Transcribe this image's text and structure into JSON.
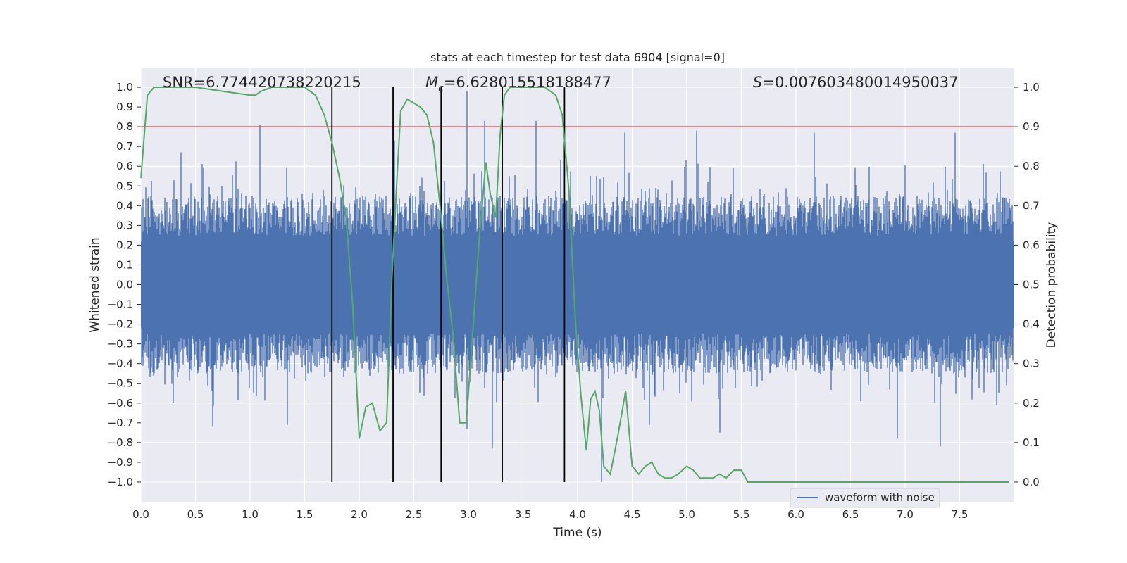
{
  "chart_data": {
    "type": "line",
    "title": "stats at each timestep for test data 6904 [signal=0]",
    "xlabel": "Time (s)",
    "ylabel": "Whitened strain",
    "y2label": "Detection probability",
    "xlim": [
      0.0,
      8.0
    ],
    "ylim": [
      -1.1,
      1.1
    ],
    "y2lim": [
      -0.05,
      1.05
    ],
    "xticks": [
      "0.0",
      "0.5",
      "1.0",
      "1.5",
      "2.0",
      "2.5",
      "3.0",
      "3.5",
      "4.0",
      "4.5",
      "5.0",
      "5.5",
      "6.0",
      "6.5",
      "7.0",
      "7.5"
    ],
    "yticks": [
      "1.0",
      "0.9",
      "0.8",
      "0.7",
      "0.6",
      "0.5",
      "0.4",
      "0.3",
      "0.2",
      "0.1",
      "0.0",
      "−0.1",
      "−0.2",
      "−0.3",
      "−0.4",
      "−0.5",
      "−0.6",
      "−0.7",
      "−0.8",
      "−0.9",
      "−1.0"
    ],
    "y2ticks": [
      "1.0",
      "0.9",
      "0.8",
      "0.7",
      "0.6",
      "0.5",
      "0.4",
      "0.3",
      "0.2",
      "0.1",
      "0.0"
    ],
    "annotations": {
      "snr": "SNR=6.774420738220215",
      "mc_symbol": "M",
      "mc_sub": "c",
      "mc_value": "=6.628015518188477",
      "s_symbol": "S",
      "s_value": "=0.007603480014950037"
    },
    "threshold": {
      "value": 0.9,
      "axis": "y2",
      "color": "#c44e52"
    },
    "event_markers_time": [
      1.75,
      2.31,
      2.75,
      3.31,
      3.88
    ],
    "legend": {
      "label": "waveform with noise",
      "location": "lower-right"
    },
    "series": [
      {
        "name": "waveform with noise",
        "axis": "y",
        "color": "#4c72b0",
        "noise_amplitude_typical": 0.45,
        "spikes": [
          {
            "t": 1.09,
            "v": 0.81
          },
          {
            "t": 2.99,
            "v": 0.98
          },
          {
            "t": 3.15,
            "v": 0.83
          },
          {
            "t": 3.62,
            "v": 0.83
          },
          {
            "t": 4.43,
            "v": 0.77
          },
          {
            "t": 5.09,
            "v": 0.78
          },
          {
            "t": 6.17,
            "v": 0.77
          },
          {
            "t": 7.46,
            "v": 0.77
          },
          {
            "t": 0.37,
            "v": 0.67
          },
          {
            "t": 1.75,
            "v": 0.67
          },
          {
            "t": 2.32,
            "v": 0.73
          },
          {
            "t": 0.66,
            "v": -0.72
          },
          {
            "t": 2.99,
            "v": -0.73
          },
          {
            "t": 3.22,
            "v": -0.83
          },
          {
            "t": 4.22,
            "v": -1.0
          },
          {
            "t": 5.3,
            "v": -0.75
          },
          {
            "t": 6.93,
            "v": -0.78
          },
          {
            "t": 7.32,
            "v": -0.82
          },
          {
            "t": 1.34,
            "v": -0.71
          },
          {
            "t": 4.66,
            "v": -0.71
          }
        ]
      },
      {
        "name": "detection probability",
        "axis": "y2",
        "color": "#55a868",
        "x": [
          0.0,
          0.06,
          0.12,
          0.25,
          0.5,
          0.75,
          1.0,
          1.05,
          1.1,
          1.2,
          1.3,
          1.5,
          1.6,
          1.68,
          1.75,
          1.82,
          1.88,
          1.94,
          2.0,
          2.06,
          2.12,
          2.19,
          2.25,
          2.3,
          2.34,
          2.38,
          2.44,
          2.5,
          2.56,
          2.62,
          2.68,
          2.74,
          2.8,
          2.86,
          2.92,
          2.98,
          3.04,
          3.1,
          3.16,
          3.2,
          3.25,
          3.29,
          3.33,
          3.38,
          3.45,
          3.55,
          3.7,
          3.8,
          3.86,
          3.92,
          3.98,
          4.03,
          4.08,
          4.12,
          4.16,
          4.2,
          4.24,
          4.3,
          4.37,
          4.44,
          4.5,
          4.56,
          4.62,
          4.68,
          4.74,
          4.8,
          4.86,
          4.92,
          5.0,
          5.06,
          5.12,
          5.18,
          5.24,
          5.3,
          5.36,
          5.43,
          5.5,
          5.56,
          5.62,
          5.7,
          5.8,
          6.0,
          6.2,
          6.4,
          6.6,
          6.8,
          7.0,
          7.2,
          7.4,
          7.6,
          7.8,
          7.95
        ],
        "y": [
          0.77,
          0.98,
          1.0,
          1.0,
          1.0,
          0.99,
          0.98,
          0.98,
          0.99,
          1.0,
          1.0,
          1.0,
          0.98,
          0.93,
          0.86,
          0.77,
          0.67,
          0.45,
          0.11,
          0.19,
          0.2,
          0.13,
          0.15,
          0.52,
          0.74,
          0.94,
          0.97,
          0.96,
          0.95,
          0.93,
          0.86,
          0.7,
          0.52,
          0.37,
          0.15,
          0.15,
          0.38,
          0.62,
          0.81,
          0.73,
          0.67,
          0.88,
          0.98,
          1.0,
          1.0,
          1.0,
          1.0,
          0.98,
          0.93,
          0.74,
          0.41,
          0.22,
          0.08,
          0.21,
          0.23,
          0.18,
          0.04,
          0.02,
          0.12,
          0.23,
          0.04,
          0.02,
          0.04,
          0.05,
          0.02,
          0.01,
          0.01,
          0.02,
          0.04,
          0.03,
          0.01,
          0.01,
          0.01,
          0.02,
          0.01,
          0.03,
          0.03,
          0.0,
          0.0,
          0.0,
          0.0,
          0.0,
          0.0,
          0.0,
          0.0,
          0.0,
          0.0,
          0.0,
          0.0,
          0.0,
          0.0,
          0.0
        ]
      }
    ]
  }
}
